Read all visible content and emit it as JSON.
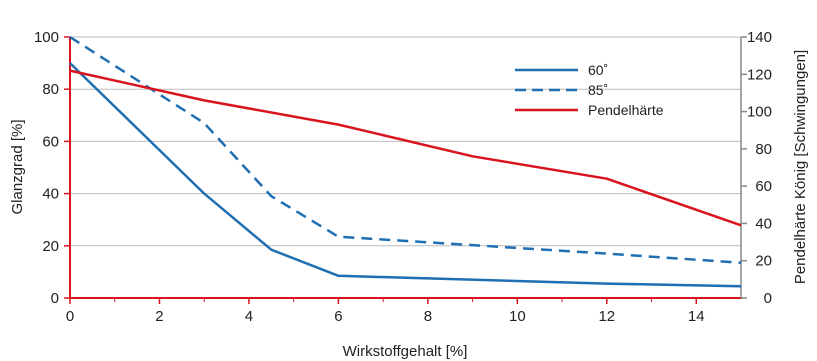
{
  "chart_data": {
    "type": "line",
    "xlabel": "Wirkstoffgehalt [%]",
    "ylabel": "Glanzgrad [%]",
    "y2label": "Pendelhärte König [Schwingungen]",
    "xlim": [
      0,
      15
    ],
    "ylim": [
      0,
      100
    ],
    "y2lim": [
      0,
      140
    ],
    "x_ticks": [
      "0",
      "2",
      "4",
      "6",
      "8",
      "10",
      "12",
      "14"
    ],
    "y_ticks": [
      "0",
      "20",
      "40",
      "60",
      "80",
      "100"
    ],
    "y2_ticks": [
      "0",
      "20",
      "40",
      "60",
      "80",
      "100",
      "120",
      "140"
    ],
    "grid": "horizontal",
    "legend_position": "top-right",
    "colors": {
      "blue": "#1f6fb2",
      "red": "#d9141e",
      "grid": "#bbbbbb"
    },
    "series": [
      {
        "name": "60˚",
        "axis": "left",
        "style": "solid",
        "color": "#1f6fb2",
        "x": [
          0,
          3,
          4.5,
          6,
          12,
          15
        ],
        "y": [
          90,
          40,
          18.5,
          8.5,
          5.5,
          4.5
        ]
      },
      {
        "name": "85˚",
        "axis": "left",
        "style": "dashed",
        "color": "#1f6fb2",
        "x": [
          0,
          3,
          4.5,
          6,
          12,
          15
        ],
        "y": [
          100,
          67,
          39,
          23.5,
          17,
          13.5
        ]
      },
      {
        "name": "Pendelhärte",
        "axis": "right",
        "style": "solid",
        "color": "#d9141e",
        "x": [
          0,
          3,
          6,
          9,
          12,
          15
        ],
        "y": [
          122,
          106,
          93,
          76,
          64,
          39
        ]
      }
    ]
  }
}
